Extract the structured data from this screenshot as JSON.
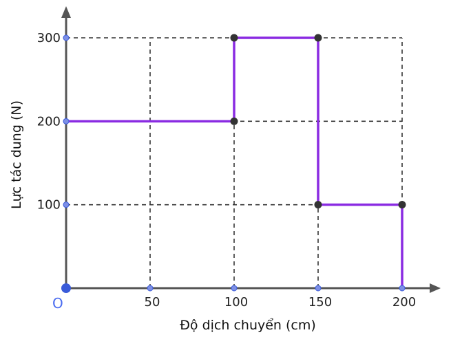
{
  "chart_data": {
    "type": "line",
    "step": true,
    "xlabel": "Độ dịch chuyển (cm)",
    "ylabel": "Lực tác dung (N)",
    "origin_label": "O",
    "xlim": [
      0,
      200
    ],
    "ylim": [
      0,
      300
    ],
    "x_ticks": [
      50,
      100,
      150,
      200
    ],
    "y_ticks": [
      100,
      200,
      300
    ],
    "x_tick_labels": [
      "50",
      "100",
      "150",
      "200"
    ],
    "y_tick_labels": [
      "100",
      "200",
      "300"
    ],
    "grid": true,
    "grid_style": "dashed",
    "series": [
      {
        "x": [
          0,
          100,
          100,
          150,
          150,
          200,
          200
        ],
        "y": [
          200,
          200,
          300,
          300,
          100,
          100,
          0
        ]
      }
    ],
    "marked_points": [
      {
        "x": 100,
        "y": 200
      },
      {
        "x": 100,
        "y": 300
      },
      {
        "x": 150,
        "y": 300
      },
      {
        "x": 150,
        "y": 100
      },
      {
        "x": 200,
        "y": 100
      }
    ],
    "colors": {
      "series": "#8a2be2",
      "axis": "#555555",
      "grid": "#333333",
      "point": "#333333",
      "tick_point": "#3a5bd9",
      "origin_label": "#4a6cf0"
    }
  }
}
